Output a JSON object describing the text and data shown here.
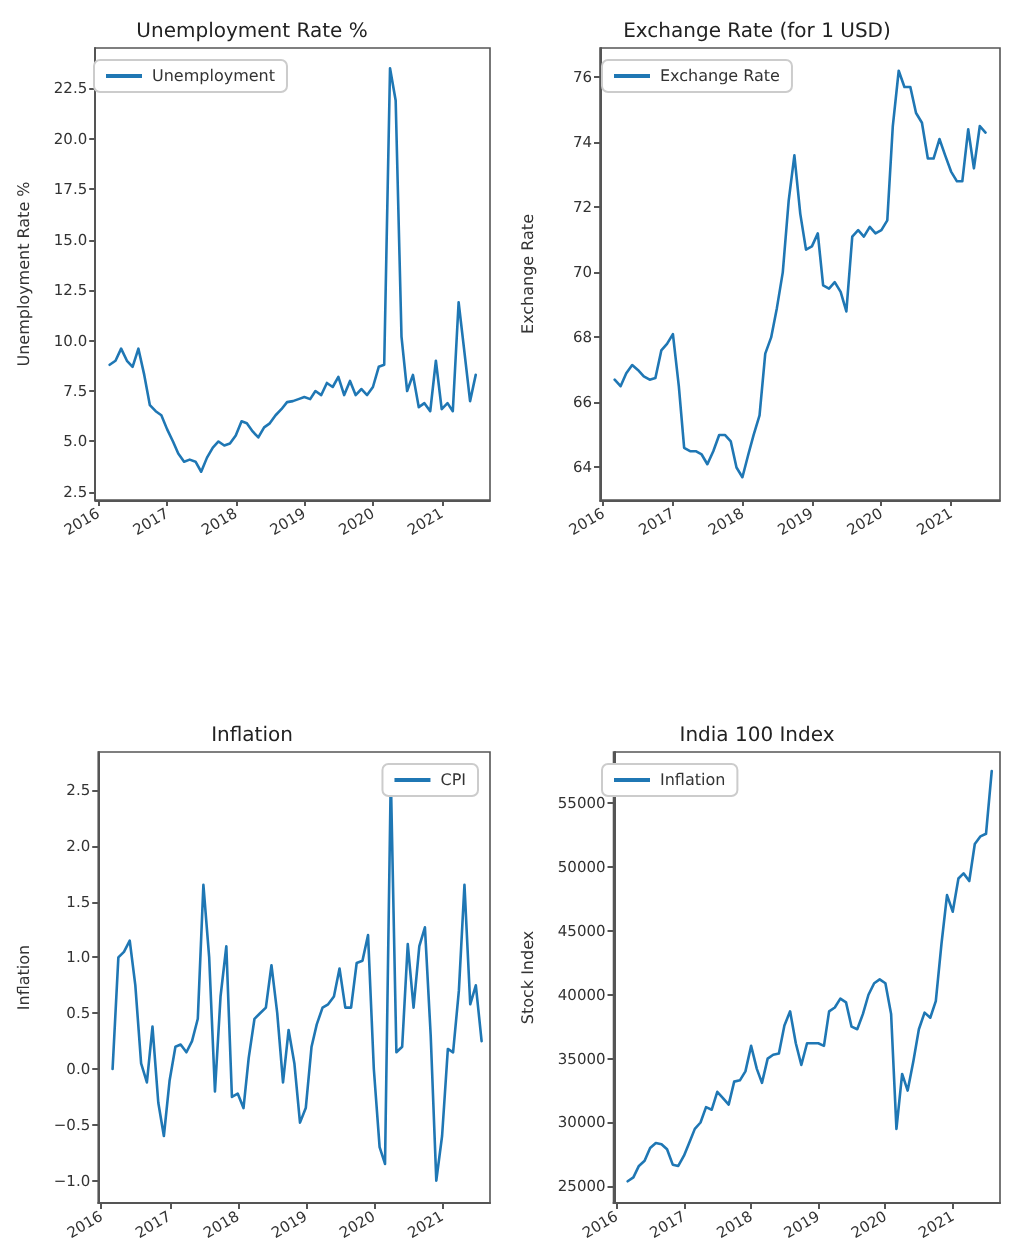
{
  "chart_data": [
    {
      "type": "line",
      "title": "Unemployment Rate %",
      "ylabel": "Unemployment Rate %",
      "legend": "top left",
      "grid": false,
      "line_style": "solid",
      "marker": "none",
      "xlim": [
        "2015-12-15",
        "2021-09-15"
      ],
      "xticks": [
        "2016",
        "2017",
        "2018",
        "2019",
        "2020",
        "2021"
      ],
      "ylim": [
        2.1,
        24.5
      ],
      "yticks": [
        2.5,
        {
          "value": 5,
          "label": "5.0"
        },
        7.5,
        {
          "value": 10,
          "label": "10.0"
        },
        12.5,
        {
          "value": 15,
          "label": "15.0"
        },
        17.5,
        {
          "value": 20,
          "label": "20.0"
        },
        22.5
      ],
      "x": [
        "2016-03",
        "2016-04",
        "2016-05",
        "2016-06",
        "2016-07",
        "2016-08",
        "2016-09",
        "2016-10",
        "2016-11",
        "2016-12",
        "2017-01",
        "2017-02",
        "2017-03",
        "2017-04",
        "2017-05",
        "2017-06",
        "2017-07",
        "2017-08",
        "2017-09",
        "2017-10",
        "2017-11",
        "2017-12",
        "2018-01",
        "2018-02",
        "2018-03",
        "2018-04",
        "2018-05",
        "2018-06",
        "2018-07",
        "2018-08",
        "2018-09",
        "2018-10",
        "2018-11",
        "2018-12",
        "2019-01",
        "2019-02",
        "2019-03",
        "2019-04",
        "2019-05",
        "2019-06",
        "2019-07",
        "2019-08",
        "2019-09",
        "2019-10",
        "2019-11",
        "2019-12",
        "2020-01",
        "2020-02",
        "2020-03",
        "2020-04",
        "2020-05",
        "2020-06",
        "2020-07",
        "2020-08",
        "2020-09",
        "2020-10",
        "2020-11",
        "2020-12",
        "2021-01",
        "2021-02",
        "2021-03",
        "2021-04",
        "2021-05",
        "2021-06",
        "2021-07"
      ],
      "series": [
        {
          "name": "Unemployment",
          "color": "#1f77b4",
          "values": [
            8.8,
            9.0,
            9.6,
            9.0,
            8.7,
            9.6,
            8.3,
            6.8,
            6.5,
            6.3,
            5.6,
            5.0,
            4.4,
            4.0,
            4.1,
            4.0,
            3.5,
            4.2,
            4.7,
            5.0,
            4.8,
            4.9,
            5.3,
            6.0,
            5.9,
            5.5,
            5.2,
            5.7,
            5.9,
            6.3,
            6.6,
            6.95,
            7.0,
            7.1,
            7.2,
            7.1,
            7.5,
            7.3,
            7.9,
            7.7,
            8.2,
            7.3,
            8.0,
            7.3,
            7.6,
            7.3,
            7.7,
            8.7,
            8.8,
            23.5,
            21.9,
            10.2,
            7.5,
            8.3,
            6.7,
            6.9,
            6.5,
            9.0,
            6.6,
            6.9,
            6.5,
            11.9,
            9.5,
            7.0,
            8.3
          ]
        }
      ]
    },
    {
      "type": "line",
      "title": "Exchange Rate (for 1 USD)",
      "ylabel": "Exchange Rate",
      "legend": "top left",
      "grid": false,
      "line_style": "solid",
      "marker": "none",
      "xlim": [
        "2015-12-15",
        "2021-09-15"
      ],
      "xticks": [
        "2016",
        "2017",
        "2018",
        "2019",
        "2020",
        "2021"
      ],
      "ylim": [
        63.0,
        76.9
      ],
      "yticks": [
        64,
        66,
        68,
        70,
        72,
        74,
        76
      ],
      "x": [
        "2016-03",
        "2016-04",
        "2016-05",
        "2016-06",
        "2016-07",
        "2016-08",
        "2016-09",
        "2016-10",
        "2016-11",
        "2016-12",
        "2017-01",
        "2017-02",
        "2017-03",
        "2017-04",
        "2017-05",
        "2017-06",
        "2017-07",
        "2017-08",
        "2017-09",
        "2017-10",
        "2017-11",
        "2017-12",
        "2018-01",
        "2018-02",
        "2018-03",
        "2018-04",
        "2018-05",
        "2018-06",
        "2018-07",
        "2018-08",
        "2018-09",
        "2018-10",
        "2018-11",
        "2018-12",
        "2019-01",
        "2019-02",
        "2019-03",
        "2019-04",
        "2019-05",
        "2019-06",
        "2019-07",
        "2019-08",
        "2019-09",
        "2019-10",
        "2019-11",
        "2019-12",
        "2020-01",
        "2020-02",
        "2020-03",
        "2020-04",
        "2020-05",
        "2020-06",
        "2020-07",
        "2020-08",
        "2020-09",
        "2020-10",
        "2020-11",
        "2020-12",
        "2021-01",
        "2021-02",
        "2021-03",
        "2021-04",
        "2021-05",
        "2021-06",
        "2021-07"
      ],
      "series": [
        {
          "name": "Exchange Rate",
          "color": "#1f77b4",
          "values": [
            66.7,
            66.5,
            66.9,
            67.15,
            67.0,
            66.8,
            66.7,
            66.75,
            67.6,
            67.8,
            68.1,
            66.5,
            64.6,
            64.5,
            64.5,
            64.4,
            64.1,
            64.5,
            65.0,
            65.0,
            64.8,
            64.0,
            63.7,
            64.4,
            65.0,
            65.6,
            67.5,
            68.0,
            68.9,
            70.0,
            72.2,
            73.6,
            71.8,
            70.7,
            70.8,
            71.2,
            69.6,
            69.5,
            69.7,
            69.4,
            68.8,
            71.1,
            71.3,
            71.1,
            71.4,
            71.2,
            71.3,
            71.6,
            74.5,
            76.2,
            75.7,
            75.7,
            74.9,
            74.6,
            73.5,
            73.5,
            74.1,
            73.6,
            73.1,
            72.8,
            72.8,
            74.4,
            73.2,
            74.5,
            74.3
          ]
        }
      ]
    },
    {
      "type": "line",
      "title": "Inflation",
      "ylabel": "Inflation",
      "legend": "top right",
      "grid": false,
      "line_style": "solid",
      "marker": "none",
      "xlim": [
        "2015-12-15",
        "2021-09-15"
      ],
      "xticks": [
        "2016",
        "2017",
        "2018",
        "2019",
        "2020",
        "2021"
      ],
      "ylim": [
        -1.2,
        2.84
      ],
      "yticks": [
        {
          "value": -1,
          "label": "−1.0"
        },
        -0.5,
        {
          "value": 0,
          "label": "0.0"
        },
        0.5,
        {
          "value": 1,
          "label": "1.0"
        },
        1.5,
        {
          "value": 2,
          "label": "2.0"
        },
        2.5
      ],
      "x": [
        "2016-03",
        "2016-04",
        "2016-05",
        "2016-06",
        "2016-07",
        "2016-08",
        "2016-09",
        "2016-10",
        "2016-11",
        "2016-12",
        "2017-01",
        "2017-02",
        "2017-03",
        "2017-04",
        "2017-05",
        "2017-06",
        "2017-07",
        "2017-08",
        "2017-09",
        "2017-10",
        "2017-11",
        "2017-12",
        "2018-01",
        "2018-02",
        "2018-03",
        "2018-04",
        "2018-05",
        "2018-06",
        "2018-07",
        "2018-08",
        "2018-09",
        "2018-10",
        "2018-11",
        "2018-12",
        "2019-01",
        "2019-02",
        "2019-03",
        "2019-04",
        "2019-05",
        "2019-06",
        "2019-07",
        "2019-08",
        "2019-09",
        "2019-10",
        "2019-11",
        "2019-12",
        "2020-01",
        "2020-02",
        "2020-03",
        "2020-04",
        "2020-05",
        "2020-06",
        "2020-07",
        "2020-08",
        "2020-09",
        "2020-10",
        "2020-11",
        "2020-12",
        "2021-01",
        "2021-02",
        "2021-03",
        "2021-04",
        "2021-05",
        "2021-06",
        "2021-07",
        "2021-08"
      ],
      "series": [
        {
          "name": "CPI",
          "color": "#1f77b4",
          "values": [
            0.0,
            1.0,
            1.05,
            1.15,
            0.75,
            0.05,
            -0.12,
            0.38,
            -0.3,
            -0.6,
            -0.1,
            0.2,
            0.22,
            0.15,
            0.25,
            0.45,
            1.65,
            1.0,
            -0.2,
            0.65,
            1.1,
            -0.25,
            -0.22,
            -0.35,
            0.1,
            0.45,
            0.5,
            0.55,
            0.93,
            0.5,
            -0.12,
            0.35,
            0.05,
            -0.48,
            -0.35,
            0.2,
            0.4,
            0.55,
            0.58,
            0.65,
            0.9,
            0.55,
            0.55,
            0.95,
            0.97,
            1.2,
            0.0,
            -0.7,
            -0.85,
            2.63,
            0.15,
            0.2,
            1.12,
            0.55,
            1.1,
            1.27,
            0.3,
            -1.0,
            -0.6,
            0.18,
            0.15,
            0.7,
            1.65,
            0.58,
            0.75,
            0.25
          ]
        }
      ]
    },
    {
      "type": "line",
      "title": "India 100 Index",
      "ylabel": "Stock Index",
      "legend": "top left",
      "grid": false,
      "line_style": "solid",
      "marker": "none",
      "xlim": [
        "2015-12-15",
        "2021-09-15"
      ],
      "xticks": [
        "2016",
        "2017",
        "2018",
        "2019",
        "2020",
        "2021"
      ],
      "ylim": [
        23700,
        59000
      ],
      "yticks": [
        25000,
        30000,
        35000,
        40000,
        45000,
        50000,
        55000
      ],
      "x": [
        "2016-03",
        "2016-04",
        "2016-05",
        "2016-06",
        "2016-07",
        "2016-08",
        "2016-09",
        "2016-10",
        "2016-11",
        "2016-12",
        "2017-01",
        "2017-02",
        "2017-03",
        "2017-04",
        "2017-05",
        "2017-06",
        "2017-07",
        "2017-08",
        "2017-09",
        "2017-10",
        "2017-11",
        "2017-12",
        "2018-01",
        "2018-02",
        "2018-03",
        "2018-04",
        "2018-05",
        "2018-06",
        "2018-07",
        "2018-08",
        "2018-09",
        "2018-10",
        "2018-11",
        "2018-12",
        "2019-01",
        "2019-02",
        "2019-03",
        "2019-04",
        "2019-05",
        "2019-06",
        "2019-07",
        "2019-08",
        "2019-09",
        "2019-10",
        "2019-11",
        "2019-12",
        "2020-01",
        "2020-02",
        "2020-03",
        "2020-04",
        "2020-05",
        "2020-06",
        "2020-07",
        "2020-08",
        "2020-09",
        "2020-10",
        "2020-11",
        "2020-12",
        "2021-01",
        "2021-02",
        "2021-03",
        "2021-04",
        "2021-05",
        "2021-06",
        "2021-07",
        "2021-08"
      ],
      "series": [
        {
          "name": "Inflation",
          "color": "#1f77b4",
          "values": [
            25400,
            25700,
            26600,
            27000,
            28000,
            28400,
            28300,
            27900,
            26700,
            26600,
            27400,
            28500,
            29500,
            30000,
            31200,
            31000,
            32400,
            31900,
            31400,
            33200,
            33300,
            34000,
            36000,
            34200,
            33100,
            35000,
            35300,
            35400,
            37600,
            38700,
            36200,
            34500,
            36200,
            36200,
            36200,
            36000,
            38700,
            39000,
            39700,
            39400,
            37500,
            37300,
            38500,
            40000,
            40900,
            41200,
            40900,
            38500,
            29500,
            33800,
            32500,
            34800,
            37300,
            38600,
            38200,
            39500,
            44000,
            47800,
            46500,
            49100,
            49500,
            48900,
            51800,
            52400,
            52600,
            57500
          ]
        }
      ]
    }
  ]
}
